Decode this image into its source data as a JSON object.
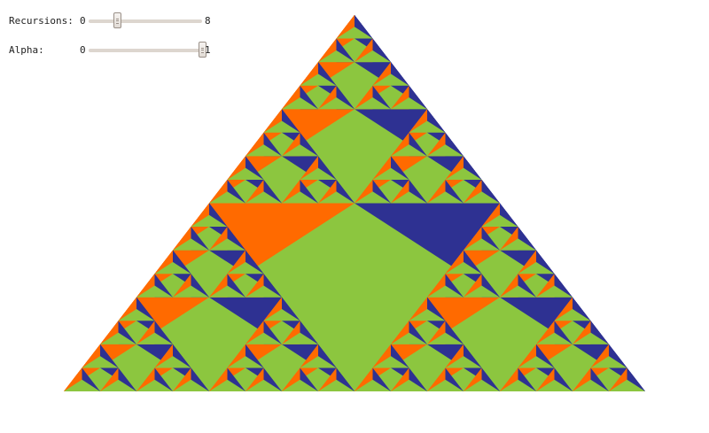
{
  "controls": {
    "recursions": {
      "label": "Recursions:",
      "min": "0",
      "max": "8",
      "value": 2,
      "value_fraction": 0.25
    },
    "alpha": {
      "label": "Alpha:",
      "min": "0",
      "max": "1",
      "value": 1,
      "value_fraction": 1.0
    }
  },
  "fractal": {
    "colors": {
      "orange": "#ff6a00",
      "blue": "#2e3192",
      "green": "#8cc63f",
      "background": "#ffffff"
    }
  }
}
